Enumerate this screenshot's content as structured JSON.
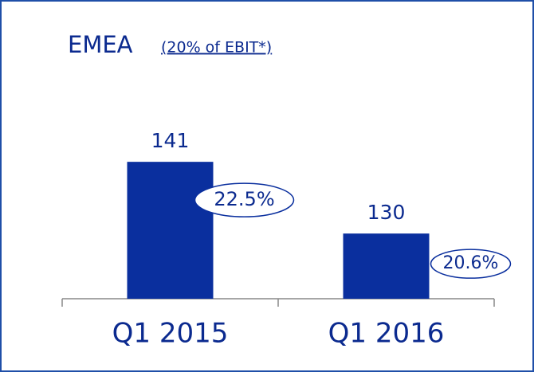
{
  "chart_data": {
    "type": "bar",
    "title": "EMEA",
    "subtitle": "(20% of EBIT*)",
    "categories": [
      "Q1 2015",
      "Q1 2016"
    ],
    "values": [
      141,
      130
    ],
    "color": "#0a2f9e",
    "annotations": [
      "22.5%",
      "20.6%"
    ],
    "ylim": [
      120,
      150
    ],
    "grid": false
  }
}
